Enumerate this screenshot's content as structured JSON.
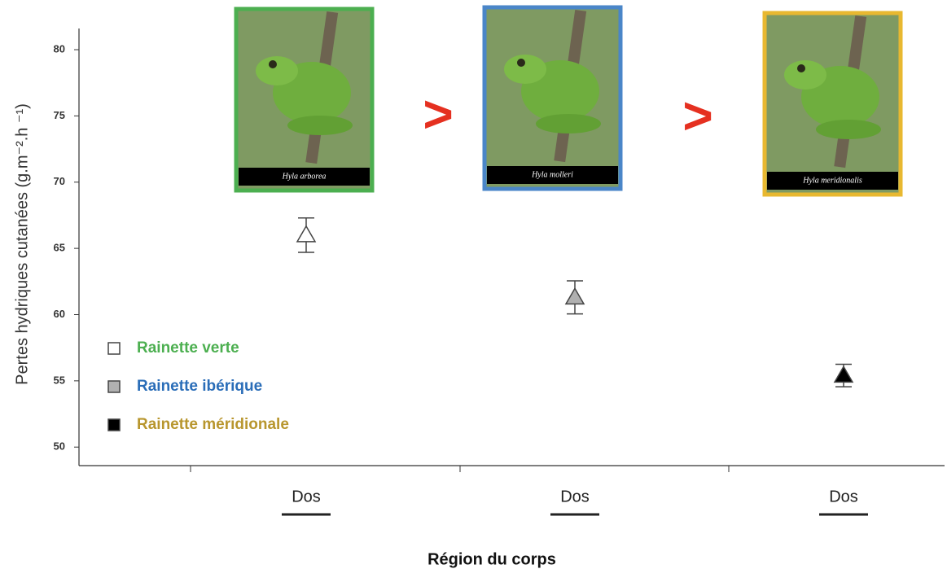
{
  "chart_data": {
    "type": "errorbar",
    "y_label": "Pertes hydriques cutanées (g.m⁻².h ⁻¹)",
    "x_label": "Région du corps",
    "categories": [
      "Dos",
      "Dos",
      "Dos"
    ],
    "ylim": [
      48.6,
      81.6
    ],
    "yticks": [
      50,
      55,
      60,
      65,
      70,
      75,
      80
    ],
    "series": [
      {
        "name": "Rainette verte",
        "color": "#ffffff",
        "label_color": "#4caf50",
        "frame_color": "#4caf50",
        "photo_caption": "Hyla arborea",
        "values": [
          66.0,
          null,
          null
        ],
        "errors": [
          1.3,
          null,
          null
        ]
      },
      {
        "name": "Rainette ibérique",
        "color": "#b0b0b0",
        "label_color": "#2a6db8",
        "frame_color": "#4a86c8",
        "photo_caption": "Hyla molleri",
        "values": [
          null,
          61.3,
          null
        ],
        "errors": [
          null,
          1.25,
          null
        ]
      },
      {
        "name": "Rainette méridionale",
        "color": "#000000",
        "label_color": "#b8962e",
        "frame_color": "#e8b830",
        "photo_caption": "Hyla meridionalis",
        "values": [
          null,
          null,
          55.4
        ],
        "errors": [
          null,
          null,
          0.85
        ]
      }
    ],
    "annotations": [
      ">",
      ">"
    ]
  }
}
